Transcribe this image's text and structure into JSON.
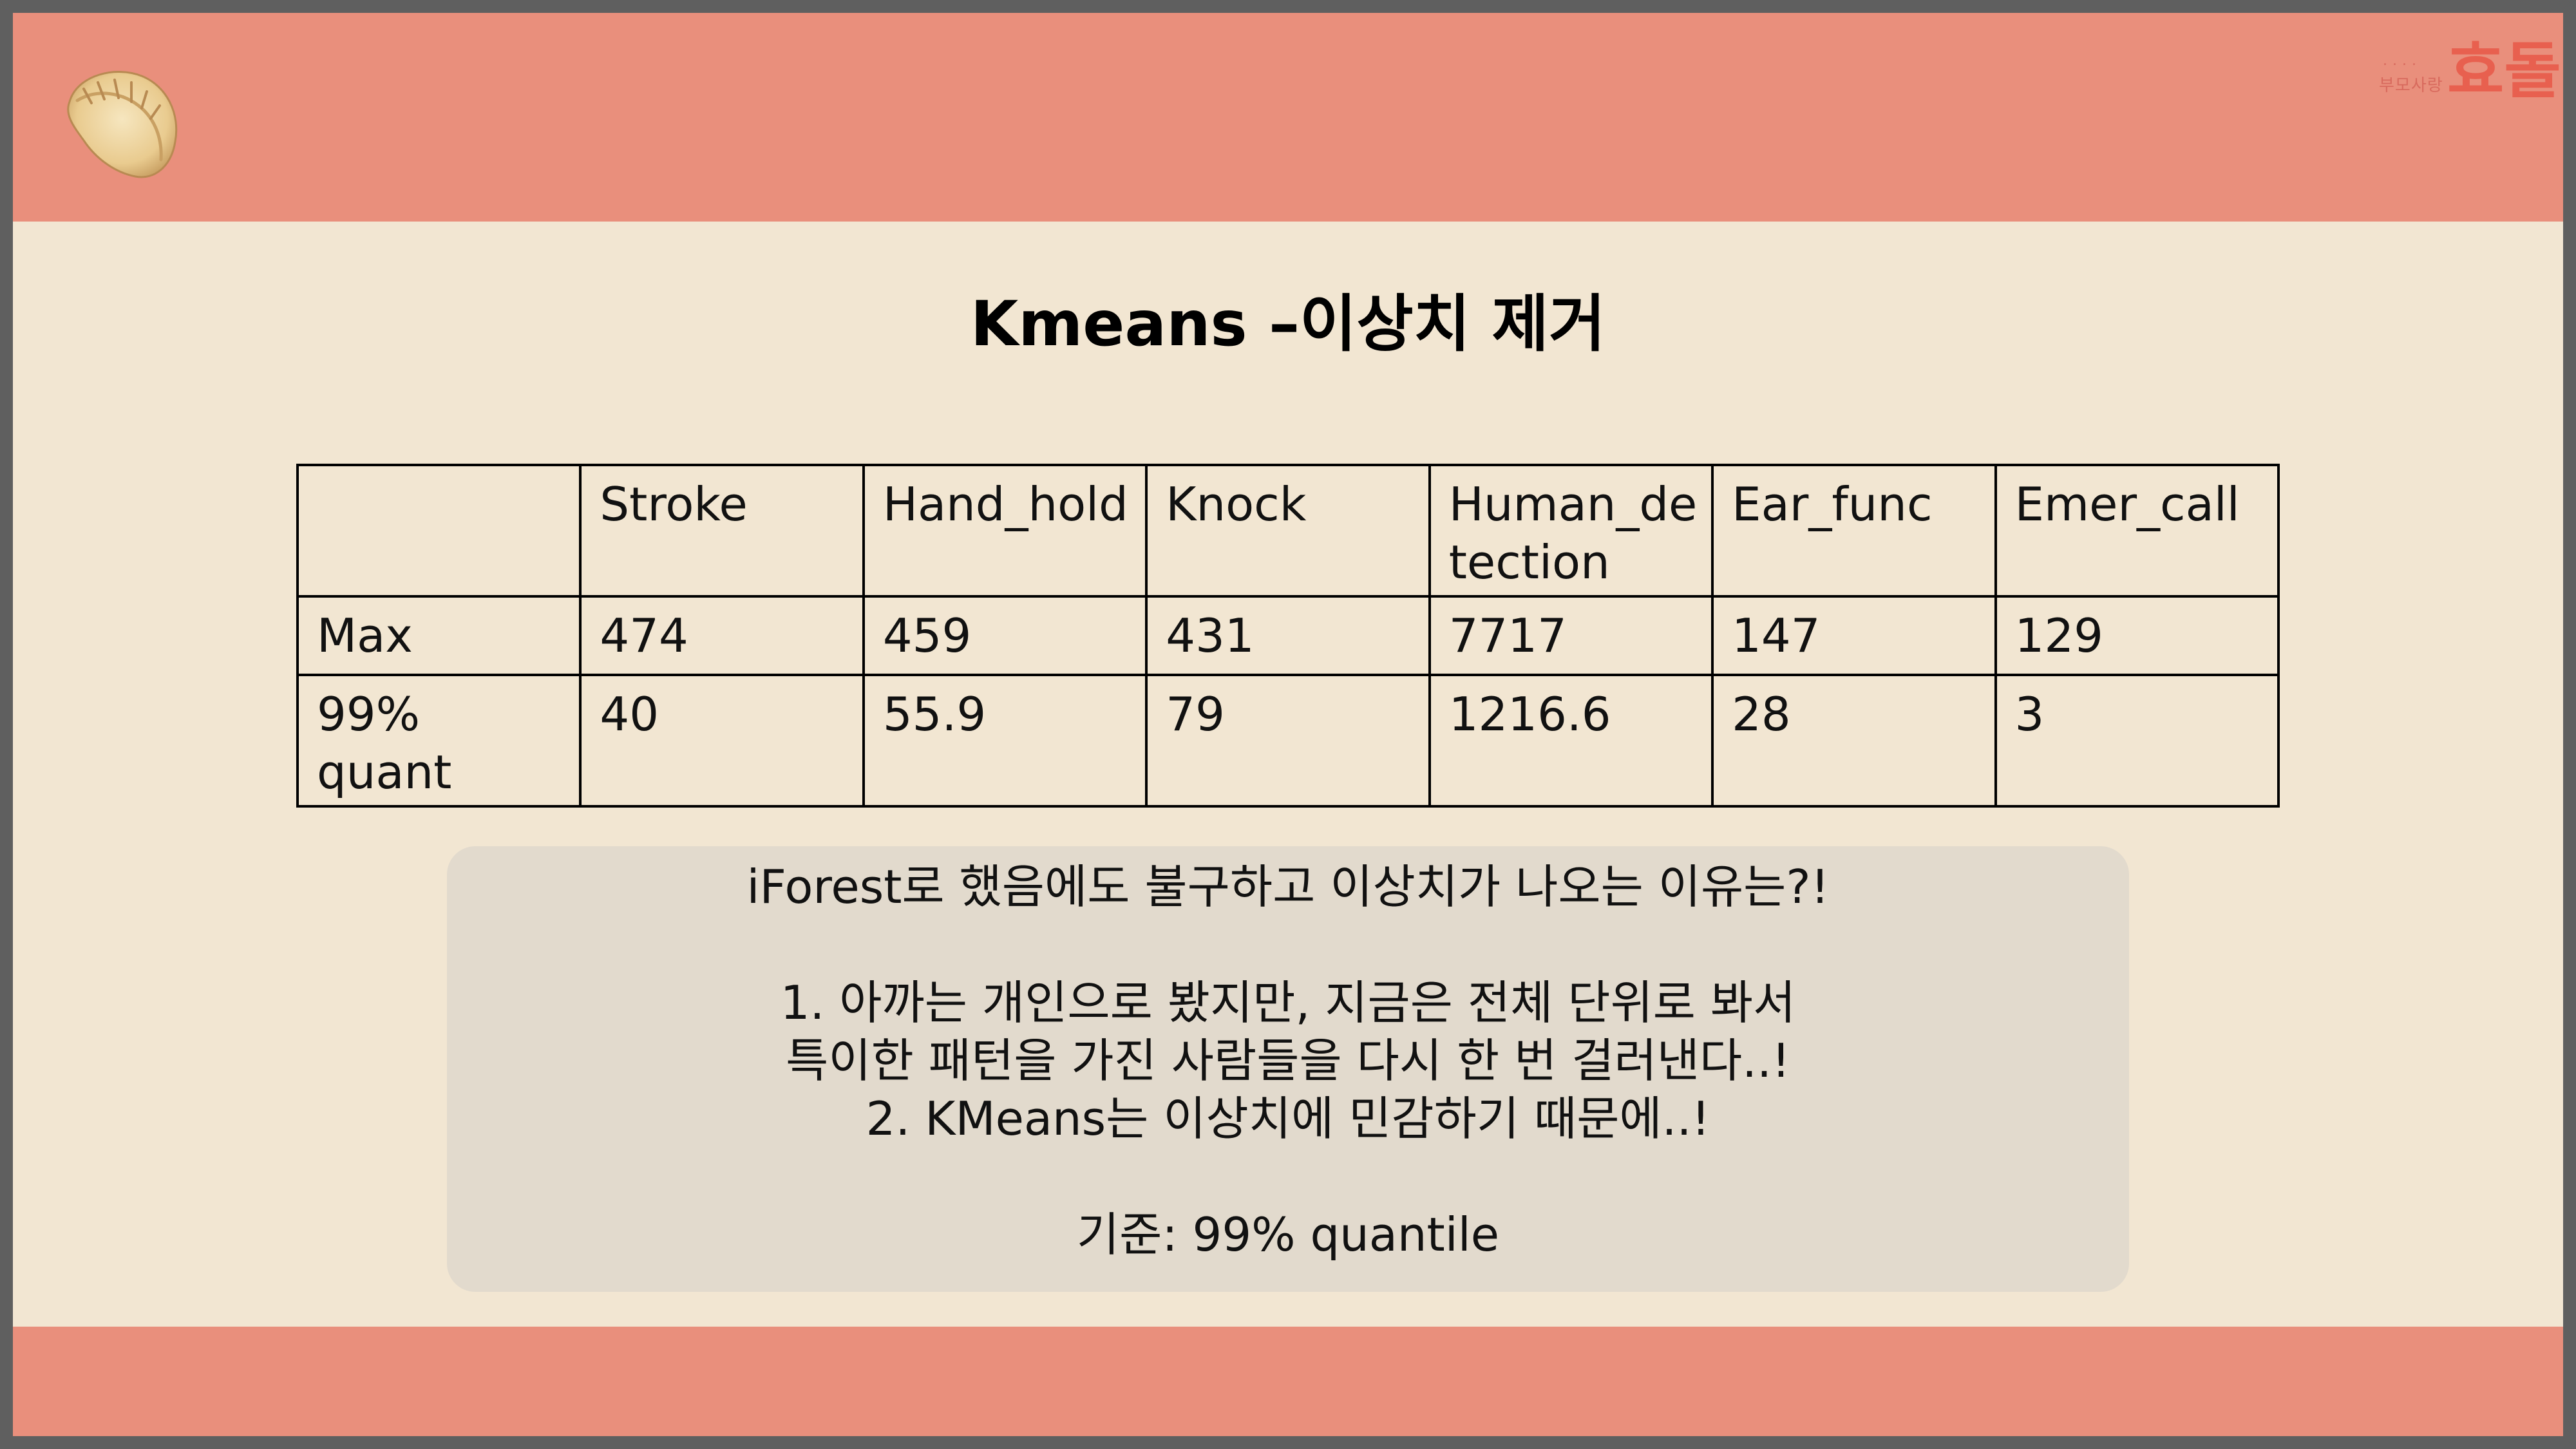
{
  "slide": {
    "title": "Kmeans –이상치 제거",
    "colors": {
      "band": "#e98f7c",
      "background": "#f2e6d2",
      "note_box": "#e2dacd",
      "outer_frame": "#5f5f5f"
    }
  },
  "logo": {
    "dots": "....",
    "small_text": "부모사랑",
    "big_text": "효돌"
  },
  "decor": {
    "dumpling_icon": "dumpling-icon"
  },
  "table": {
    "headers": [
      "",
      "Stroke",
      "Hand_hold",
      "Knock",
      "Human_de tection",
      "Ear_func",
      "Emer_call"
    ],
    "rows": [
      [
        "Max",
        "474",
        "459",
        "431",
        "7717",
        "147",
        "129"
      ],
      [
        "99% quant",
        "40",
        "55.9",
        "79",
        "1216.6",
        "28",
        "3"
      ]
    ]
  },
  "note": {
    "question": "iForest로 했음에도 불구하고 이상치가 나오는 이유는?!",
    "reason1_line1": "1. 아까는 개인으로 봤지만, 지금은 전체 단위로 봐서",
    "reason1_line2": "특이한 패턴을 가진 사람들을 다시 한 번 걸러낸다..!",
    "reason2": "2. KMeans는 이상치에 민감하기 때문에..!",
    "criterion": "기준: 99% quantile"
  }
}
